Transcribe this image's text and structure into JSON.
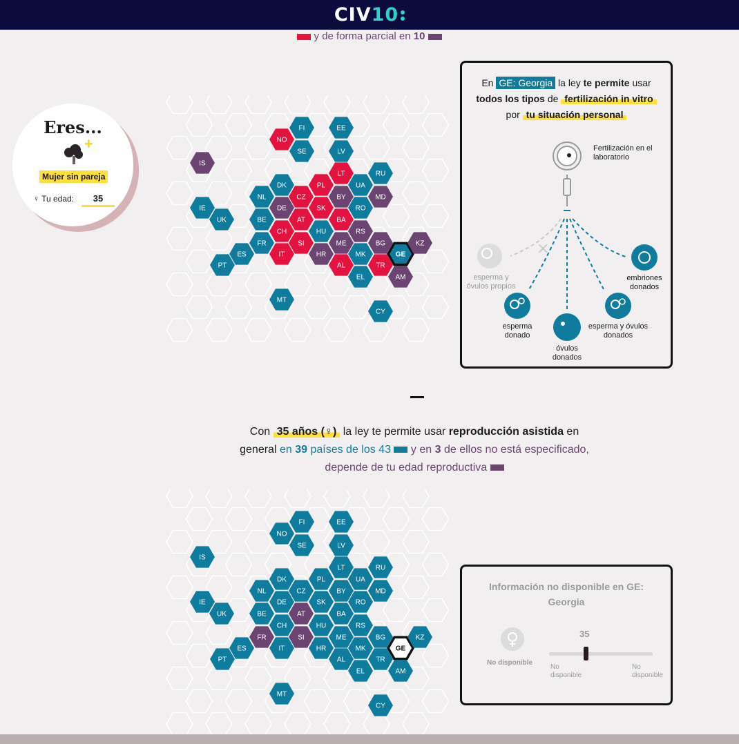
{
  "header": {
    "logo_main": "CIV",
    "logo_num": "10"
  },
  "partial_line": {
    "text": "y de forma parcial en",
    "count": "10"
  },
  "profile": {
    "title": "Eres...",
    "tree_icon": "tree-icon",
    "plus_icon": "plus-icon",
    "label": "Mujer sin pareja",
    "age_label": "♀ Tu edad:",
    "age_value": "35"
  },
  "colors": {
    "red": "#e4123f",
    "purple": "#6b4471",
    "blue": "#0f7c9d",
    "yellow": "#ffe03b",
    "navy": "#0b0b3d"
  },
  "map1": {
    "hexes": [
      {
        "code": "FI",
        "c": "blue"
      },
      {
        "code": "EE",
        "c": "blue"
      },
      {
        "code": "NO",
        "c": "red"
      },
      {
        "code": "SE",
        "c": "blue"
      },
      {
        "code": "LV",
        "c": "blue"
      },
      {
        "code": "IS",
        "c": "purple"
      },
      {
        "code": "LT",
        "c": "red"
      },
      {
        "code": "RU",
        "c": "blue"
      },
      {
        "code": "DK",
        "c": "blue"
      },
      {
        "code": "PL",
        "c": "red"
      },
      {
        "code": "UA",
        "c": "blue"
      },
      {
        "code": "NL",
        "c": "blue"
      },
      {
        "code": "CZ",
        "c": "red"
      },
      {
        "code": "BY",
        "c": "purple"
      },
      {
        "code": "MD",
        "c": "purple"
      },
      {
        "code": "IE",
        "c": "blue"
      },
      {
        "code": "DE",
        "c": "purple"
      },
      {
        "code": "SK",
        "c": "red"
      },
      {
        "code": "RO",
        "c": "blue"
      },
      {
        "code": "UK",
        "c": "blue"
      },
      {
        "code": "BE",
        "c": "blue"
      },
      {
        "code": "AT",
        "c": "red"
      },
      {
        "code": "BA",
        "c": "red"
      },
      {
        "code": "CH",
        "c": "red"
      },
      {
        "code": "HU",
        "c": "blue"
      },
      {
        "code": "RS",
        "c": "purple"
      },
      {
        "code": "FR",
        "c": "blue"
      },
      {
        "code": "SI",
        "c": "red"
      },
      {
        "code": "ME",
        "c": "purple"
      },
      {
        "code": "BG",
        "c": "purple"
      },
      {
        "code": "GE",
        "c": "blue",
        "sel": true
      },
      {
        "code": "KZ",
        "c": "purple"
      },
      {
        "code": "ES",
        "c": "blue"
      },
      {
        "code": "IT",
        "c": "red"
      },
      {
        "code": "HR",
        "c": "purple"
      },
      {
        "code": "MK",
        "c": "blue"
      },
      {
        "code": "PT",
        "c": "blue"
      },
      {
        "code": "AL",
        "c": "red"
      },
      {
        "code": "TR",
        "c": "red"
      },
      {
        "code": "EL",
        "c": "blue"
      },
      {
        "code": "AM",
        "c": "purple"
      },
      {
        "code": "MT",
        "c": "blue"
      },
      {
        "code": "CY",
        "c": "blue"
      }
    ]
  },
  "card1": {
    "prefix": "En",
    "country": "GE: Georgia",
    "law_text": "la ley",
    "permits": "te permite",
    "use": "usar",
    "all_types": "todos los tipos",
    "of": "de",
    "fiv": "fertilización in vitro",
    "por": "por",
    "situation": "tu situación personal",
    "lab_label": "Fertilización en el laboratorio",
    "lab_icon": "petri-dish-icon",
    "syringe_icon": "syringe-icon",
    "own_label": "esperma y óvulos propios",
    "sperm_label": "esperma donado",
    "eggs_label": "óvulos donados",
    "both_label": "esperma y óvulos donados",
    "embryo_label": "embriones donados"
  },
  "mid_text": {
    "con": "Con",
    "age": "35 años (♀)",
    "law": "la ley te permite usar",
    "ra": "reproducción asistida",
    "en": "en",
    "general": "general",
    "en2": "en",
    "n": "39",
    "countries": "países de los 43",
    "y_en": "y en",
    "n2": "3",
    "not_spec": "de ellos no está especificado,",
    "depends": "depende de tu edad reproductiva"
  },
  "map2": {
    "hexes": [
      {
        "code": "FI",
        "c": "blue"
      },
      {
        "code": "EE",
        "c": "blue"
      },
      {
        "code": "NO",
        "c": "blue"
      },
      {
        "code": "SE",
        "c": "blue"
      },
      {
        "code": "LV",
        "c": "blue"
      },
      {
        "code": "IS",
        "c": "blue"
      },
      {
        "code": "LT",
        "c": "blue"
      },
      {
        "code": "RU",
        "c": "blue"
      },
      {
        "code": "DK",
        "c": "blue"
      },
      {
        "code": "PL",
        "c": "blue"
      },
      {
        "code": "UA",
        "c": "blue"
      },
      {
        "code": "NL",
        "c": "blue"
      },
      {
        "code": "CZ",
        "c": "blue"
      },
      {
        "code": "BY",
        "c": "blue"
      },
      {
        "code": "MD",
        "c": "blue"
      },
      {
        "code": "IE",
        "c": "blue"
      },
      {
        "code": "DE",
        "c": "blue"
      },
      {
        "code": "SK",
        "c": "blue"
      },
      {
        "code": "RO",
        "c": "blue"
      },
      {
        "code": "UK",
        "c": "blue"
      },
      {
        "code": "BE",
        "c": "blue"
      },
      {
        "code": "AT",
        "c": "purple"
      },
      {
        "code": "BA",
        "c": "blue"
      },
      {
        "code": "CH",
        "c": "blue"
      },
      {
        "code": "HU",
        "c": "blue"
      },
      {
        "code": "RS",
        "c": "blue"
      },
      {
        "code": "FR",
        "c": "purple"
      },
      {
        "code": "SI",
        "c": "purple"
      },
      {
        "code": "ME",
        "c": "blue"
      },
      {
        "code": "BG",
        "c": "blue"
      },
      {
        "code": "GE",
        "c": "white",
        "sel": true
      },
      {
        "code": "KZ",
        "c": "blue"
      },
      {
        "code": "ES",
        "c": "blue"
      },
      {
        "code": "IT",
        "c": "blue"
      },
      {
        "code": "HR",
        "c": "blue"
      },
      {
        "code": "MK",
        "c": "blue"
      },
      {
        "code": "PT",
        "c": "blue"
      },
      {
        "code": "AL",
        "c": "blue"
      },
      {
        "code": "TR",
        "c": "blue"
      },
      {
        "code": "EL",
        "c": "blue"
      },
      {
        "code": "AM",
        "c": "blue"
      },
      {
        "code": "MT",
        "c": "blue"
      },
      {
        "code": "CY",
        "c": "blue"
      }
    ]
  },
  "card2": {
    "title": "Información no disponible en  GE: Georgia",
    "icon": "female-symbol-icon",
    "not_available": "No disponible",
    "slider_value": "35",
    "slider_position": 0.35,
    "left_label": "No disponible",
    "right_label": "No disponible"
  }
}
